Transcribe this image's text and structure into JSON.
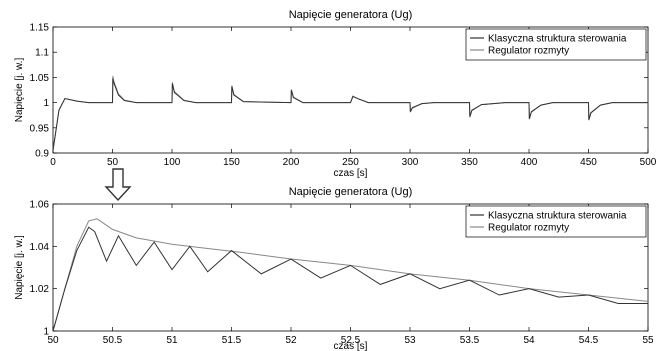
{
  "chart_data": [
    {
      "type": "line",
      "title": "Napięcie generatora (Ug)",
      "xlabel": "czas [s]",
      "ylabel": "Napięcie [j. w.]",
      "xlim": [
        0,
        500
      ],
      "ylim": [
        0.9,
        1.15
      ],
      "xticks": [
        "0",
        "50",
        "100",
        "150",
        "200",
        "250",
        "300",
        "350",
        "400",
        "450",
        "500"
      ],
      "yticks": [
        "0.9",
        "0.95",
        "1",
        "1.05",
        "1.1",
        "1.15"
      ],
      "grid": false,
      "legend_position": "top-right",
      "series": [
        {
          "name": "Klasyczna struktura sterowania",
          "color": "#333333",
          "x": [
            0,
            5,
            10,
            20,
            30,
            50,
            50.3,
            51,
            55,
            60,
            70,
            100,
            100.3,
            102,
            110,
            120,
            150,
            150.3,
            152,
            160,
            200,
            200.3,
            202,
            210,
            250,
            252,
            256,
            265,
            300,
            300.3,
            302,
            310,
            320,
            350,
            350.3,
            352,
            360,
            380,
            400,
            400.3,
            402,
            410,
            420,
            450,
            450.3,
            452,
            460,
            470,
            500
          ],
          "y": [
            0.905,
            0.985,
            1.008,
            1.003,
            1.0,
            1.0,
            1.048,
            1.04,
            1.015,
            1.004,
            1.0,
            1.0,
            1.038,
            1.02,
            1.004,
            1.0,
            1.0,
            1.032,
            1.015,
            1.002,
            1.0,
            1.025,
            1.01,
            1.0,
            1.0,
            1.012,
            1.008,
            1.0,
            1.0,
            0.982,
            0.99,
            0.998,
            1.0,
            1.0,
            0.972,
            0.985,
            0.996,
            1.0,
            1.0,
            0.968,
            0.982,
            0.995,
            1.0,
            1.0,
            0.966,
            0.98,
            0.995,
            1.0,
            1.0
          ]
        },
        {
          "name": "Regulator rozmyty",
          "color": "#888888",
          "x": [
            0,
            5,
            10,
            20,
            30,
            50,
            50.3,
            51,
            55,
            60,
            70,
            100,
            100.3,
            102,
            110,
            120,
            150,
            150.3,
            152,
            160,
            200,
            200.3,
            202,
            210,
            250,
            252,
            256,
            265,
            300,
            300.3,
            302,
            310,
            320,
            350,
            350.3,
            352,
            360,
            380,
            400,
            400.3,
            402,
            410,
            420,
            450,
            450.3,
            452,
            460,
            470,
            500
          ],
          "y": [
            0.905,
            0.985,
            1.008,
            1.003,
            1.0,
            1.0,
            1.053,
            1.043,
            1.017,
            1.005,
            1.0,
            1.0,
            1.04,
            1.022,
            1.005,
            1.0,
            1.0,
            1.034,
            1.016,
            1.002,
            1.0,
            1.026,
            1.011,
            1.0,
            1.0,
            1.013,
            1.008,
            1.0,
            1.0,
            0.981,
            0.989,
            0.998,
            1.0,
            1.0,
            0.971,
            0.984,
            0.996,
            1.0,
            1.0,
            0.967,
            0.981,
            0.995,
            1.0,
            1.0,
            0.965,
            0.979,
            0.995,
            1.0,
            1.0
          ]
        }
      ]
    },
    {
      "type": "line",
      "title": "Napięcie generatora (Ug)",
      "xlabel": "czas [s]",
      "ylabel": "Napięcie [j. w.]",
      "xlim": [
        50,
        55
      ],
      "ylim": [
        1.0,
        1.06
      ],
      "xticks": [
        "50",
        "50.5",
        "51",
        "51.5",
        "52",
        "52.5",
        "53",
        "53.5",
        "54",
        "54.5",
        "55"
      ],
      "yticks": [
        "1",
        "1.02",
        "1.04",
        "1.06"
      ],
      "grid": false,
      "legend_position": "top-right",
      "series": [
        {
          "name": "Klasyczna struktura sterowania",
          "color": "#333333",
          "x": [
            50.0,
            50.1,
            50.2,
            50.3,
            50.35,
            50.45,
            50.55,
            50.7,
            50.85,
            51.0,
            51.15,
            51.3,
            51.5,
            51.75,
            52.0,
            52.25,
            52.5,
            52.75,
            53.0,
            53.25,
            53.5,
            53.75,
            54.0,
            54.25,
            54.5,
            54.75,
            55.0
          ],
          "y": [
            1.0,
            1.02,
            1.038,
            1.049,
            1.047,
            1.033,
            1.045,
            1.031,
            1.042,
            1.029,
            1.04,
            1.028,
            1.038,
            1.027,
            1.034,
            1.025,
            1.031,
            1.022,
            1.027,
            1.02,
            1.024,
            1.017,
            1.02,
            1.016,
            1.017,
            1.013,
            1.013
          ]
        },
        {
          "name": "Regulator rozmyty",
          "color": "#888888",
          "x": [
            50.0,
            50.1,
            50.2,
            50.3,
            50.37,
            50.5,
            50.7,
            51.0,
            51.3,
            51.6,
            52.0,
            52.5,
            53.0,
            53.5,
            54.0,
            54.5,
            55.0
          ],
          "y": [
            1.0,
            1.02,
            1.04,
            1.052,
            1.053,
            1.048,
            1.044,
            1.041,
            1.039,
            1.037,
            1.034,
            1.031,
            1.027,
            1.024,
            1.02,
            1.017,
            1.014
          ]
        }
      ]
    }
  ]
}
